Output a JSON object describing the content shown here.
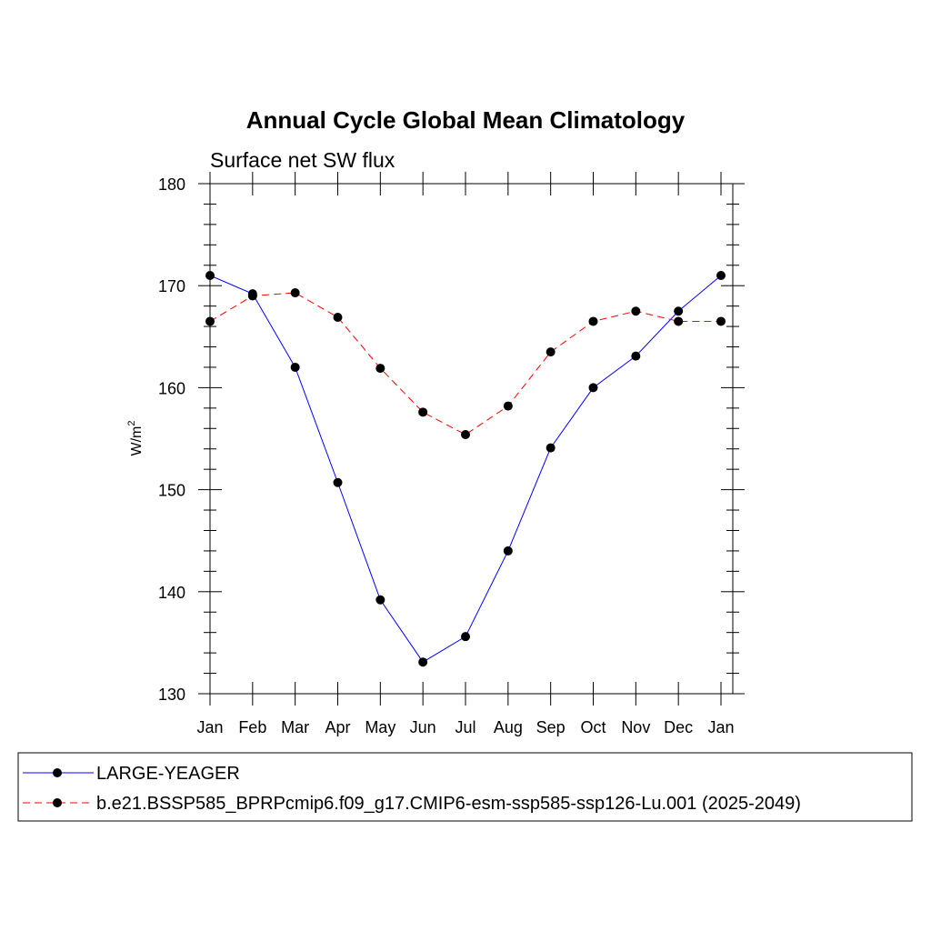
{
  "chart_data": {
    "type": "line",
    "title": "Annual Cycle Global Mean Climatology",
    "subtitle": "Surface net SW flux",
    "ylabel_base": "W/m",
    "ylabel_sup": "2",
    "categories": [
      "Jan",
      "Feb",
      "Mar",
      "Apr",
      "May",
      "Jun",
      "Jul",
      "Aug",
      "Sep",
      "Oct",
      "Nov",
      "Dec",
      "Jan"
    ],
    "ylim": [
      130,
      180
    ],
    "yticks": [
      130,
      140,
      150,
      160,
      170,
      180
    ],
    "yticks_minor_step": 2,
    "grid": false,
    "legend_position": "bottom",
    "series": [
      {
        "name": "LARGE-YEAGER",
        "color": "#0000ff",
        "dash": "solid",
        "values": [
          171.0,
          169.2,
          162.0,
          150.7,
          139.2,
          133.1,
          135.6,
          144.0,
          154.1,
          160.0,
          163.1,
          167.5,
          171.0
        ]
      },
      {
        "name": "b.e21.BSSP585_BPRPcmip6.f09_g17.CMIP6-esm-ssp585-ssp126-Lu.001 (2025-2049)",
        "color": "#ff0000",
        "dash": "dashed",
        "values": [
          166.5,
          169.0,
          169.3,
          166.9,
          161.9,
          157.6,
          155.4,
          158.2,
          163.5,
          166.5,
          167.5,
          166.5,
          166.5
        ]
      }
    ]
  }
}
